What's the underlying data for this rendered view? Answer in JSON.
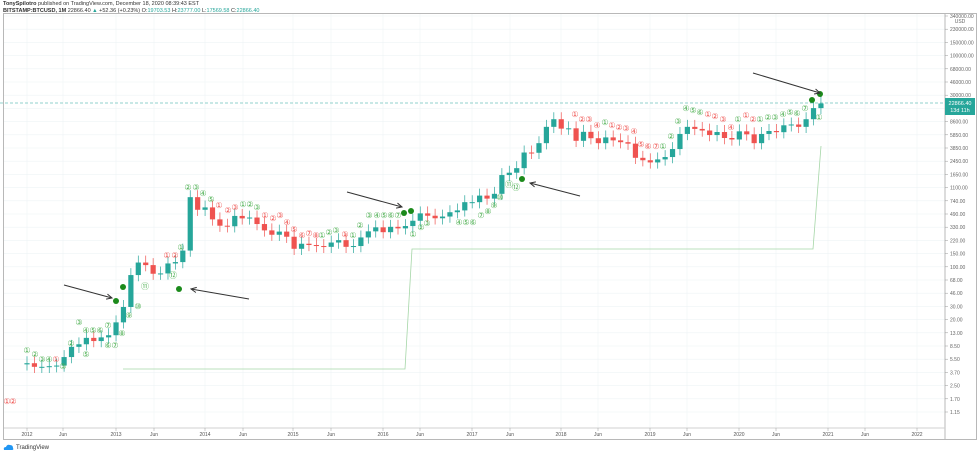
{
  "header": {
    "author": "TonySpilotro",
    "published": "published on TradingView.com, December 18, 2020 08:39:43 EST",
    "symbol": "BITSTAMP:BTCUSD, 1M",
    "last": "22866.40",
    "change": "+52.36 (+0.23%)",
    "o_label": "O:",
    "o": "19703.53",
    "h_label": "H:",
    "h": "23777.00",
    "l_label": "L:",
    "l": "17569.58",
    "c_label": "C:",
    "c": "22866.40"
  },
  "price_axis": {
    "currency": "USD",
    "ticks": [
      "340000.00",
      "230000.00",
      "150000.00",
      "100000.00",
      "68000.00",
      "46000.00",
      "30000.00",
      "13000.00",
      "8600.00",
      "5850.00",
      "3850.00",
      "2450.00",
      "1650.00",
      "1100.00",
      "740.00",
      "490.00",
      "330.00",
      "220.00",
      "150.00",
      "100.00",
      "68.00",
      "46.00",
      "30.00",
      "20.00",
      "13.00",
      "8.50",
      "5.50",
      "3.70",
      "2.50",
      "1.70",
      "1.15"
    ],
    "last_price_label": "22866.40",
    "countdown_label": "13d 11h"
  },
  "time_axis": {
    "ticks": [
      "2012",
      "Jun",
      "2013",
      "Jun",
      "2014",
      "Jun",
      "2015",
      "Jun",
      "2016",
      "Jun",
      "2017",
      "Jun",
      "2018",
      "Jun",
      "2019",
      "Jun",
      "2020",
      "Jun",
      "2021",
      "Jun",
      "2022"
    ]
  },
  "footer": {
    "brand": "TradingView"
  },
  "colors": {
    "up": "#26a69a",
    "down": "#ef5350",
    "td_green": "#4caf50",
    "td_red": "#ef5350",
    "line": "#a5d6a7",
    "grid": "#eef3f6",
    "last_price_bg": "#26a69a"
  },
  "chart_data": {
    "type": "candlestick",
    "title": "BITSTAMP:BTCUSD, 1M",
    "xlabel": "",
    "ylabel": "USD",
    "yscale": "log",
    "ylim": [
      1.15,
      340000
    ],
    "x_range": [
      "2012-01",
      "2022-12"
    ],
    "grid": true,
    "legend": "none",
    "last": {
      "open": 19703.53,
      "high": 23777.0,
      "low": 17569.58,
      "close": 22866.4,
      "change": 52.36,
      "change_pct": 0.23
    },
    "annotations": [
      {
        "type": "arrow",
        "target": "2013 TD 9 buy setup",
        "direction": "down-right"
      },
      {
        "type": "arrow",
        "target": "2013 TD 13 countdown",
        "direction": "left"
      },
      {
        "type": "arrow",
        "target": "2016 TD 9 setup",
        "direction": "down-right"
      },
      {
        "type": "arrow",
        "target": "2017 TD 13 countdown",
        "direction": "left"
      },
      {
        "type": "arrow",
        "target": "2020 TD 9 sell setup",
        "direction": "down-right"
      }
    ],
    "indicators": [
      "TD Sequential counts (green up / red down)",
      "Step line (support level)"
    ]
  }
}
